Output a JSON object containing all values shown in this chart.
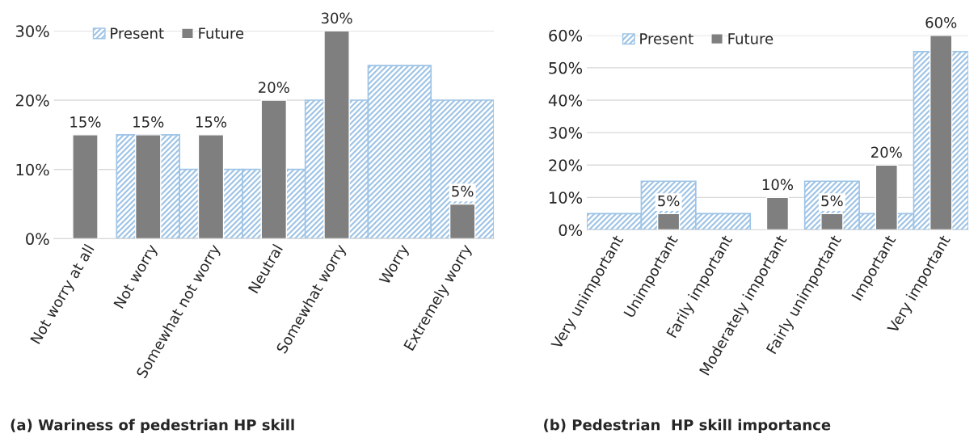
{
  "chart_data": [
    {
      "type": "bar",
      "title": "(a) Wariness of pedestrian HP skill",
      "categories": [
        "Not worry at all",
        "Not worry",
        "Somewhat not worry",
        "Neutral",
        "Somewhat worry",
        "Worry",
        "Extremely worry"
      ],
      "series": [
        {
          "name": "Present",
          "color": "#9dc3e6",
          "values": [
            null,
            15,
            10,
            10,
            20,
            25,
            20
          ]
        },
        {
          "name": "Future",
          "color": "#7f7f7f",
          "values": [
            15,
            15,
            15,
            20,
            30,
            null,
            5
          ],
          "value_labels": [
            "15%",
            "15%",
            "15%",
            "20%",
            "30%",
            null,
            "5%"
          ]
        }
      ],
      "ylim": [
        0,
        30
      ],
      "yticks": [
        {
          "value": 0,
          "label": "0%"
        },
        {
          "value": 10,
          "label": "10%"
        },
        {
          "value": 20,
          "label": "20%"
        },
        {
          "value": 30,
          "label": "30%"
        }
      ],
      "grid": "y",
      "legend": "top left"
    },
    {
      "type": "bar",
      "title": "(b) Pedestrian  HP skill importance",
      "categories": [
        "Very unimportant",
        "Unimportant",
        "Farily important",
        "Moderately important",
        "Fairly unimportant",
        "Important",
        "Very important"
      ],
      "series": [
        {
          "name": "Present",
          "color": "#9dc3e6",
          "values": [
            5,
            15,
            5,
            null,
            15,
            5,
            55
          ]
        },
        {
          "name": "Future",
          "color": "#7f7f7f",
          "values": [
            null,
            5,
            null,
            10,
            5,
            20,
            60
          ],
          "value_labels": [
            null,
            "5%",
            null,
            "10%",
            "5%",
            "20%",
            "60%"
          ]
        }
      ],
      "ylim": [
        0,
        60
      ],
      "yticks": [
        {
          "value": 0,
          "label": "0%"
        },
        {
          "value": 10,
          "label": "10%"
        },
        {
          "value": 20,
          "label": "20%"
        },
        {
          "value": 30,
          "label": "30%"
        },
        {
          "value": 40,
          "label": "40%"
        },
        {
          "value": 50,
          "label": "50%"
        },
        {
          "value": 60,
          "label": "60%"
        }
      ],
      "grid": "y",
      "legend": "top left"
    }
  ]
}
